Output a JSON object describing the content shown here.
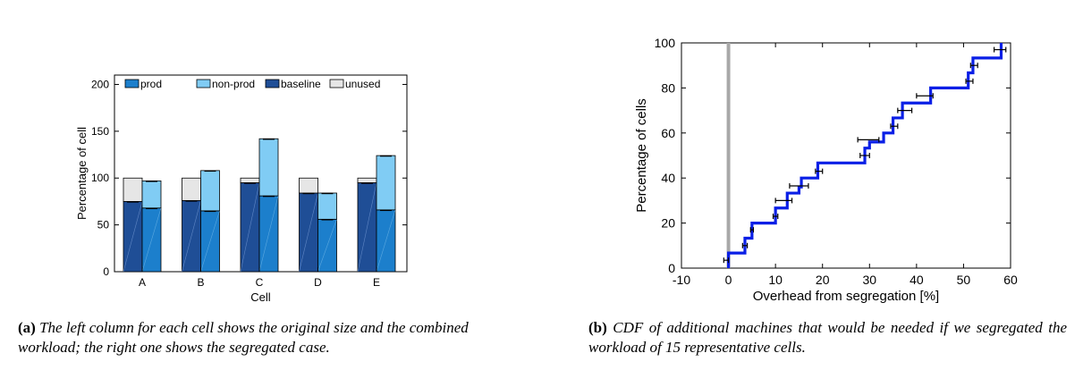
{
  "chart_data": [
    {
      "type": "bar",
      "subtype": "stacked-paired",
      "xlabel": "Cell",
      "ylabel": "Percentage of cell",
      "ylim": [
        0,
        210
      ],
      "yticks": [
        0,
        50,
        100,
        150,
        200
      ],
      "categories": [
        "A",
        "B",
        "C",
        "D",
        "E"
      ],
      "legend": [
        "prod",
        "non-prod",
        "baseline",
        "unused"
      ],
      "legend_position": "top",
      "colors": {
        "prod": "#1c7fcc",
        "non-prod": "#80ccf4",
        "baseline": "#1f4e96",
        "unused": "#e6e6e6"
      },
      "original_column": {
        "baseline": [
          75,
          76,
          95,
          84,
          95
        ],
        "unused": [
          25,
          24,
          5,
          16,
          5
        ]
      },
      "segregated_column": {
        "prod": [
          68,
          65,
          81,
          56,
          66
        ],
        "non-prod": [
          29,
          43,
          61,
          28,
          58
        ]
      }
    },
    {
      "type": "line",
      "subtype": "cdf-step",
      "xlabel": "Overhead from segregation [%]",
      "ylabel": "Percentage of cells",
      "xlim": [
        -10,
        60
      ],
      "ylim": [
        0,
        100
      ],
      "xticks": [
        -10,
        0,
        10,
        20,
        30,
        40,
        50,
        60
      ],
      "yticks": [
        0,
        20,
        40,
        60,
        80,
        100
      ],
      "vertical_reference_x": 0,
      "x": [
        0,
        3.5,
        5,
        10,
        12.5,
        15,
        15.5,
        19,
        29,
        30,
        33,
        35,
        37,
        43,
        51,
        52,
        58
      ],
      "y": [
        6.7,
        13.3,
        20,
        26.7,
        33.3,
        36,
        40,
        46.7,
        53.3,
        56,
        60,
        66.7,
        73.3,
        80,
        86.7,
        93.3,
        100
      ],
      "error_bars": [
        {
          "y": 3.5,
          "x_low": -1,
          "x_high": 0
        },
        {
          "y": 10,
          "x_low": 3,
          "x_high": 4
        },
        {
          "y": 17,
          "x_low": 4.7,
          "x_high": 5.3
        },
        {
          "y": 23,
          "x_low": 9.5,
          "x_high": 10.5
        },
        {
          "y": 30,
          "x_low": 10,
          "x_high": 13.5
        },
        {
          "y": 36.5,
          "x_low": 13,
          "x_high": 17
        },
        {
          "y": 43,
          "x_low": 18.5,
          "x_high": 20
        },
        {
          "y": 50,
          "x_low": 28,
          "x_high": 30
        },
        {
          "y": 57,
          "x_low": 27.5,
          "x_high": 32
        },
        {
          "y": 63,
          "x_low": 34.5,
          "x_high": 36
        },
        {
          "y": 70,
          "x_low": 36,
          "x_high": 39
        },
        {
          "y": 76.5,
          "x_low": 40,
          "x_high": 43.5
        },
        {
          "y": 83,
          "x_low": 50.5,
          "x_high": 52
        },
        {
          "y": 90,
          "x_low": 51.5,
          "x_high": 53
        },
        {
          "y": 97,
          "x_low": 56.5,
          "x_high": 59
        }
      ]
    }
  ],
  "captions": {
    "a_label": "(a)",
    "a_text": "The left column for each cell shows the original size and the combined workload; the right one shows the segregated case.",
    "b_label": "(b)",
    "b_text": "CDF of additional machines that would be needed if we segregated the workload of 15 representative cells."
  }
}
